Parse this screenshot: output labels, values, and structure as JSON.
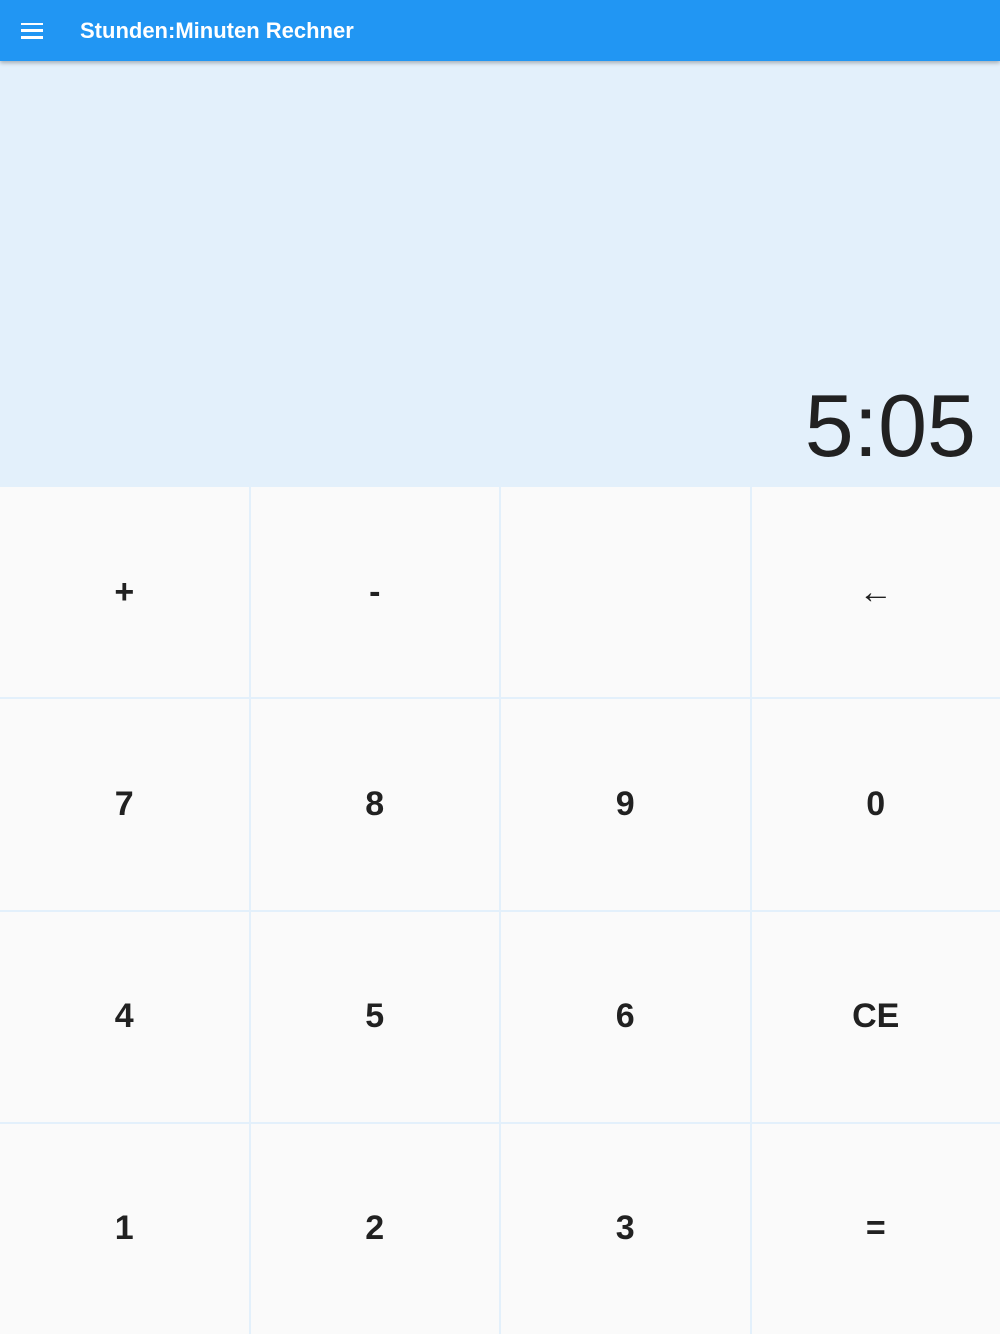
{
  "appbar": {
    "title": "Stunden:Minuten Rechner",
    "menu_icon": "hamburger-menu-icon",
    "color": "#2196f3"
  },
  "display": {
    "value": "5:05",
    "background": "#e3f0fb"
  },
  "keys": [
    {
      "label": "+",
      "name": "plus"
    },
    {
      "label": "-",
      "name": "minus"
    },
    {
      "label": "",
      "name": "empty"
    },
    {
      "label": "←",
      "name": "backspace"
    },
    {
      "label": "7",
      "name": "7"
    },
    {
      "label": "8",
      "name": "8"
    },
    {
      "label": "9",
      "name": "9"
    },
    {
      "label": "0",
      "name": "0"
    },
    {
      "label": "4",
      "name": "4"
    },
    {
      "label": "5",
      "name": "5"
    },
    {
      "label": "6",
      "name": "6"
    },
    {
      "label": "CE",
      "name": "clear"
    },
    {
      "label": "1",
      "name": "1"
    },
    {
      "label": "2",
      "name": "2"
    },
    {
      "label": "3",
      "name": "3"
    },
    {
      "label": "=",
      "name": "equals"
    }
  ]
}
